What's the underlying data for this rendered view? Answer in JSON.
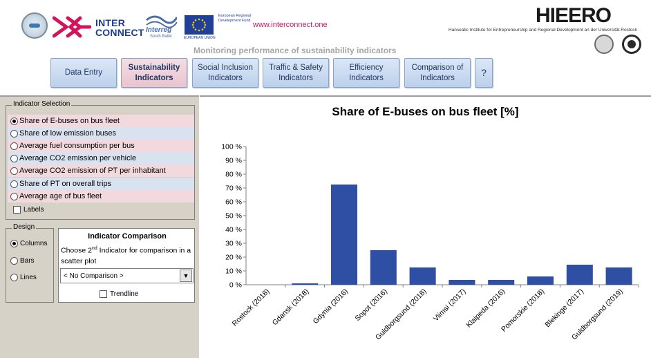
{
  "header": {
    "interconnect_logo_line1": "INTER",
    "interconnect_logo_line2": "CONNECT",
    "interreg_name": "Interreg",
    "interreg_sub": "South Baltic",
    "eu_text": "European Regional Development Fund",
    "eu_under": "EUROPEAN UNION",
    "website": "www.interconnect.one",
    "hieero_logo": "HIEERO",
    "hieero_subtitle": "Hanseatic Institute for Entrepreneurship and Regional Development an der Universität Rostock",
    "page_subtitle": "Monitoring performance of sustainability indicators"
  },
  "nav": {
    "buttons": [
      {
        "label": "Data Entry"
      },
      {
        "label": "Sustainability Indicators",
        "active": true
      },
      {
        "label": "Social Inclusion Indicators"
      },
      {
        "label": "Traffic & Safety Indicators"
      },
      {
        "label": "Efficiency Indicators"
      },
      {
        "label": "Comparison of Indicators"
      },
      {
        "label": "?"
      }
    ]
  },
  "indicator_selection": {
    "title": "Indicator Selection",
    "items": [
      {
        "label": "Share of E-buses on bus fleet",
        "selected": true
      },
      {
        "label": "Share of low emission buses",
        "selected": false
      },
      {
        "label": "Average fuel consumption per bus",
        "selected": false
      },
      {
        "label": "Average CO2 emission per vehicle",
        "selected": false
      },
      {
        "label": "Average CO2 emission of PT per inhabitant",
        "selected": false
      },
      {
        "label": "Share of PT on overall trips",
        "selected": false
      },
      {
        "label": "Average age of bus fleet",
        "selected": false
      }
    ],
    "labels_checkbox": "Labels"
  },
  "design": {
    "title": "Design",
    "options": [
      {
        "label": "Columns",
        "selected": true
      },
      {
        "label": "Bars",
        "selected": false
      },
      {
        "label": "Lines",
        "selected": false
      }
    ]
  },
  "comparison": {
    "title": "Indicator Comparison",
    "text_prefix": "Choose 2",
    "text_sup": "nd",
    "text_suffix": " Indicator for comparison in a scatter plot",
    "dropdown_value": "< No Comparison >",
    "trendline_label": "Trendline"
  },
  "colors": {
    "bar": "#2e4fa3",
    "nav_active": "#e9c4ce",
    "nav_default": "#c9daf1",
    "panel_bg": "#d6d2c8"
  },
  "chart_data": {
    "type": "bar",
    "title": "Share of E-buses on bus fleet [%]",
    "categories": [
      "Rostock (2018)",
      "Gdansk (2018)",
      "Gdynia (2016)",
      "Sopot (2016)",
      "Guldborgsund (2018)",
      "Viimsi (2017)",
      "Klaipeda (2016)",
      "Pomorskie (2018)",
      "Blekinge (2017)",
      "Guldborgsund (2019)"
    ],
    "values": [
      0,
      1,
      72.5,
      25,
      12.5,
      3.5,
      3.5,
      6,
      14.5,
      12.5
    ],
    "ylim": [
      0,
      100
    ],
    "yticks": [
      "0 %",
      "10 %",
      "20 %",
      "30 %",
      "40 %",
      "50 %",
      "60 %",
      "70 %",
      "80 %",
      "90 %",
      "100 %"
    ],
    "xlabel": "",
    "ylabel": "",
    "grid": false,
    "legend": "none"
  }
}
